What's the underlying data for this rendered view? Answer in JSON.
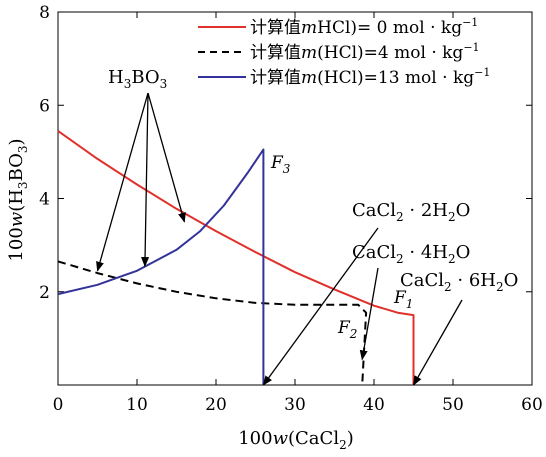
{
  "chart_data": {
    "type": "line",
    "x_axis": {
      "ticks": [
        0,
        10,
        20,
        30,
        40,
        50,
        60
      ],
      "lim": [
        0,
        60
      ]
    },
    "y_axis": {
      "ticks": [
        2,
        4,
        6,
        8
      ],
      "lim": [
        0,
        8
      ]
    },
    "xlabel": "100w(CaCl2)",
    "ylabel": "100w(H3BO3)",
    "legend": {
      "placement": "top-right",
      "entries": [
        {
          "label": "计算值mHCl)= 0 mol · kg⁻¹",
          "color": "#e0302a",
          "dash": "solid"
        },
        {
          "label": "计算值m(HCl)=4 mol · kg⁻¹",
          "color": "#000000",
          "dash": "dashed"
        },
        {
          "label": "计算值m(HCl)=13 mol · kg⁻¹",
          "color": "#333399",
          "dash": "solid"
        }
      ]
    },
    "series": [
      {
        "color": "#e0302a",
        "dash": "solid",
        "points": [
          [
            0,
            5.45
          ],
          [
            5,
            4.85
          ],
          [
            10,
            4.3
          ],
          [
            15,
            3.78
          ],
          [
            20,
            3.3
          ],
          [
            25,
            2.85
          ],
          [
            30,
            2.42
          ],
          [
            35,
            2.05
          ],
          [
            40,
            1.7
          ],
          [
            43,
            1.55
          ],
          [
            45,
            1.5
          ],
          [
            45,
            0
          ]
        ]
      },
      {
        "color": "#000000",
        "dash": "dashed",
        "points": [
          [
            0,
            2.65
          ],
          [
            5,
            2.4
          ],
          [
            10,
            2.18
          ],
          [
            15,
            2.0
          ],
          [
            20,
            1.86
          ],
          [
            25,
            1.76
          ],
          [
            30,
            1.72
          ],
          [
            35,
            1.72
          ],
          [
            38,
            1.72
          ],
          [
            39,
            1.55
          ],
          [
            38.5,
            0
          ]
        ]
      },
      {
        "color": "#333399",
        "dash": "solid",
        "points": [
          [
            0,
            1.95
          ],
          [
            5,
            2.15
          ],
          [
            10,
            2.45
          ],
          [
            15,
            2.9
          ],
          [
            18,
            3.3
          ],
          [
            21,
            3.85
          ],
          [
            24,
            4.55
          ],
          [
            26,
            5.05
          ],
          [
            26,
            0
          ]
        ]
      }
    ],
    "annotations": {
      "h3bo3": "H3BO3",
      "dihydrate": "CaCl2 · 2H2O",
      "tetrahydrate": "CaCl2 · 4H2O",
      "hexahydrate": "CaCl2 · 6H2O",
      "f1": "F1",
      "f2": "F2",
      "f3": "F3"
    }
  }
}
